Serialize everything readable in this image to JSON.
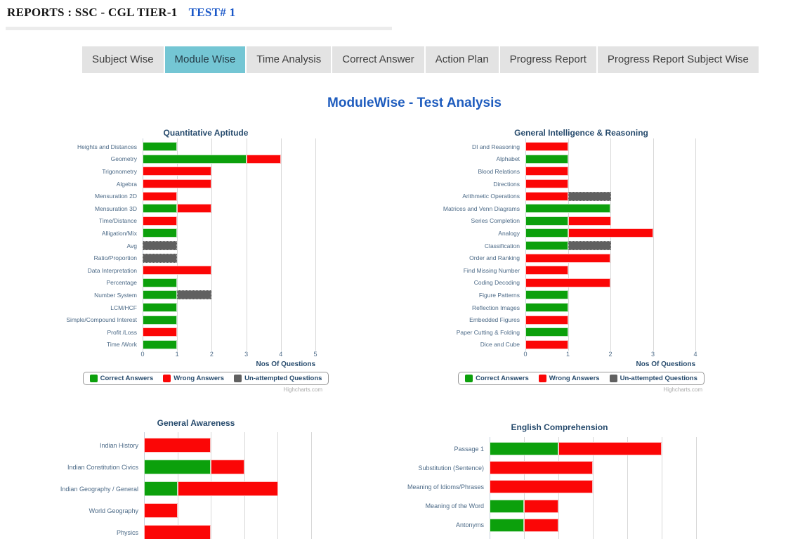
{
  "header": {
    "title": "REPORTS : SSC - CGL TIER-1",
    "test_label": "TEST# 1"
  },
  "tabs": [
    {
      "label": "Subject Wise",
      "active": false
    },
    {
      "label": "Module Wise",
      "active": true
    },
    {
      "label": "Time Analysis",
      "active": false
    },
    {
      "label": "Correct Answer",
      "active": false
    },
    {
      "label": "Action Plan",
      "active": false
    },
    {
      "label": "Progress Report",
      "active": false
    },
    {
      "label": "Progress Report Subject Wise",
      "active": false
    }
  ],
  "page_title": "ModuleWise - Test Analysis",
  "watermark": "Highcharts.com",
  "colors": {
    "correct": "#0CA00C",
    "wrong": "#FB0606",
    "unattempted": "#606060",
    "active_tab": "#74C6D4",
    "title_blue": "#1E5CBE",
    "chart_navy": "#274B6D",
    "label_steel": "#4C6A87"
  },
  "chart_data": [
    {
      "type": "bar",
      "stacked": true,
      "title": "Quantitative Aptitude",
      "xlabel": "Nos Of Questions",
      "xlim": [
        0,
        5
      ],
      "ticks": [
        0,
        1,
        2,
        3,
        4,
        5
      ],
      "grid": "vertical",
      "legend_position": "bottom",
      "categories": [
        "Heights and Distances",
        "Geometry",
        "Trigonometry",
        "Algebra",
        "Mensuration 2D",
        "Mensuration 3D",
        "Time/Distance",
        "Alligation/Mix",
        "Avg",
        "Ratio/Proportion",
        "Data Interpretation",
        "Percentage",
        "Number System",
        "LCM/HCF",
        "Simple/Compound Interest",
        "Profit /Loss",
        "Time /Work"
      ],
      "series": [
        {
          "name": "Correct Answers",
          "color": "#0CA00C",
          "values": [
            1,
            3,
            0,
            0,
            0,
            1,
            0,
            1,
            0,
            0,
            0,
            1,
            1,
            1,
            1,
            0,
            1
          ]
        },
        {
          "name": "Wrong Answers",
          "color": "#FB0606",
          "values": [
            0,
            1,
            2,
            2,
            1,
            1,
            1,
            0,
            0,
            0,
            2,
            0,
            0,
            0,
            0,
            1,
            0
          ]
        },
        {
          "name": "Un-attempted Questions",
          "color": "#606060",
          "values": [
            0,
            0,
            0,
            0,
            0,
            0,
            0,
            0,
            1,
            1,
            0,
            0,
            1,
            0,
            0,
            0,
            0
          ]
        }
      ]
    },
    {
      "type": "bar",
      "stacked": true,
      "title": "General Intelligence & Reasoning",
      "xlabel": "Nos Of Questions",
      "xlim": [
        0,
        4
      ],
      "ticks": [
        0,
        1,
        2,
        3,
        4
      ],
      "grid": "vertical",
      "legend_position": "bottom",
      "categories": [
        "DI and Reasoning",
        "Alphabet",
        "Blood Relations",
        "Directions",
        "Arithmetic Operations",
        "Matrices and Venn Diagrams",
        "Series Completion",
        "Analogy",
        "Classification",
        "Order and Ranking",
        "Find Missing Number",
        "Coding Decoding",
        "Figure Patterns",
        "Reflection Images",
        "Embedded Figures",
        "Paper Cutting & Folding",
        "Dice and Cube"
      ],
      "series": [
        {
          "name": "Correct Answers",
          "color": "#0CA00C",
          "values": [
            0,
            1,
            0,
            0,
            0,
            2,
            1,
            1,
            1,
            0,
            0,
            0,
            1,
            1,
            0,
            1,
            0
          ]
        },
        {
          "name": "Wrong Answers",
          "color": "#FB0606",
          "values": [
            1,
            0,
            1,
            1,
            1,
            0,
            1,
            2,
            0,
            2,
            1,
            2,
            0,
            0,
            1,
            0,
            1
          ]
        },
        {
          "name": "Un-attempted Questions",
          "color": "#606060",
          "values": [
            0,
            0,
            0,
            0,
            1,
            0,
            0,
            0,
            1,
            0,
            0,
            0,
            0,
            0,
            0,
            0,
            0
          ]
        }
      ]
    },
    {
      "type": "bar",
      "stacked": true,
      "title": "General Awareness",
      "xlabel": "",
      "xlim": [
        0,
        5
      ],
      "ticks": [],
      "grid": "vertical",
      "legend_position": "none",
      "categories": [
        "Indian History",
        "Indian Constitution Civics",
        "Indian Geography / General",
        "World Geography",
        "Physics"
      ],
      "series": [
        {
          "name": "Correct Answers",
          "color": "#0CA00C",
          "values": [
            0,
            2,
            1,
            0,
            0
          ]
        },
        {
          "name": "Wrong Answers",
          "color": "#FB0606",
          "values": [
            2,
            1,
            3,
            1,
            2
          ]
        },
        {
          "name": "Un-attempted Questions",
          "color": "#606060",
          "values": [
            0,
            0,
            0,
            0,
            0
          ]
        }
      ]
    },
    {
      "type": "bar",
      "stacked": true,
      "title": "English Comprehension",
      "xlabel": "",
      "xlim": [
        0,
        6
      ],
      "ticks": [],
      "grid": "vertical",
      "legend_position": "none",
      "categories": [
        "Passage 1",
        "Substitution (Sentence)",
        "Meaning of Idioms/Phrases",
        "Meaning of the Word",
        "Antonyms"
      ],
      "series": [
        {
          "name": "Correct Answers",
          "color": "#0CA00C",
          "values": [
            2,
            0,
            0,
            1,
            1
          ]
        },
        {
          "name": "Wrong Answers",
          "color": "#FB0606",
          "values": [
            3,
            3,
            3,
            1,
            1
          ]
        },
        {
          "name": "Un-attempted Questions",
          "color": "#606060",
          "values": [
            0,
            0,
            0,
            0,
            0
          ]
        }
      ]
    }
  ]
}
